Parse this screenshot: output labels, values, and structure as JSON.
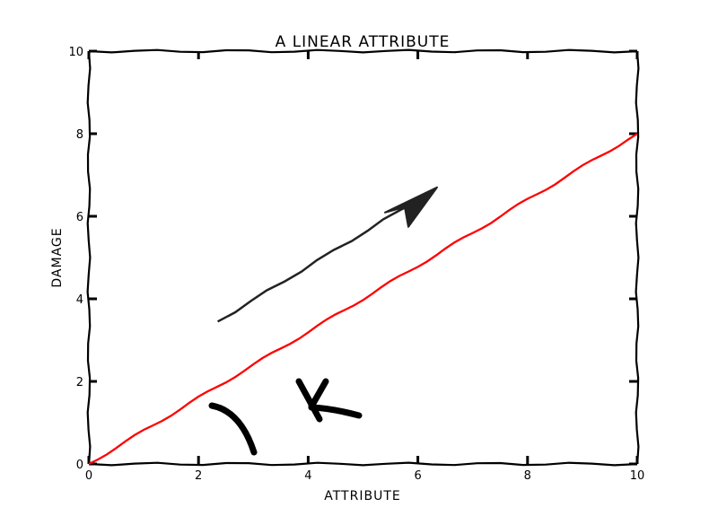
{
  "chart_data": {
    "type": "line",
    "title": "A LINEAR ATTRIBUTE",
    "xlabel": "ATTRIBUTE",
    "ylabel": "DAMAGE",
    "xlim": [
      0,
      10
    ],
    "ylim": [
      0,
      10
    ],
    "xticks": [
      "0",
      "2",
      "4",
      "6",
      "8",
      "10"
    ],
    "yticks": [
      "0",
      "2",
      "4",
      "6",
      "8",
      "10"
    ],
    "grid": false,
    "style": "xkcd hand-drawn",
    "series": [
      {
        "x": [
          0,
          1,
          2,
          3,
          4,
          5,
          6,
          7,
          8,
          9,
          10
        ],
        "y": [
          0,
          0.8,
          1.6,
          2.4,
          3.2,
          4.0,
          4.8,
          5.6,
          6.4,
          7.2,
          8.0
        ],
        "color": "#ff0000"
      }
    ],
    "annotations": [
      {
        "type": "arrow",
        "from": [
          2.35,
          3.45
        ],
        "to": [
          6.35,
          6.7
        ],
        "color": "#222222"
      }
    ]
  }
}
